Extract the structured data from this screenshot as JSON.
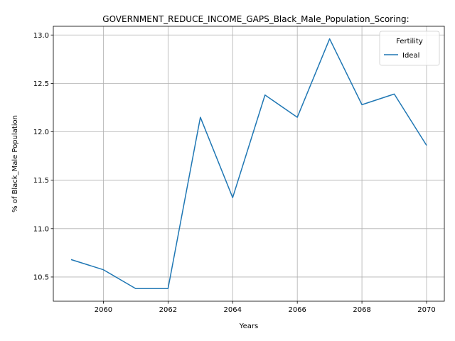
{
  "chart_data": {
    "type": "line",
    "title": "GOVERNMENT_REDUCE_INCOME_GAPS_Black_Male_Population_Scoring:",
    "xlabel": "Years",
    "ylabel": "% of Black_Male Population",
    "xlim": [
      2058.45,
      2070.55
    ],
    "ylim": [
      10.25,
      13.09
    ],
    "x_ticks": [
      2060,
      2062,
      2064,
      2066,
      2068,
      2070
    ],
    "y_ticks": [
      10.5,
      11.0,
      11.5,
      12.0,
      12.5,
      13.0
    ],
    "x_tick_labels": [
      "2060",
      "2062",
      "2064",
      "2066",
      "2068",
      "2070"
    ],
    "y_tick_labels": [
      "10.5",
      "11.0",
      "11.5",
      "12.0",
      "12.5",
      "13.0"
    ],
    "grid": true,
    "legend": {
      "title": "Fertility",
      "placement": "top-right"
    },
    "series": [
      {
        "name": "Ideal",
        "color": "#1f77b4",
        "x": [
          2059,
          2060,
          2061,
          2062,
          2063,
          2064,
          2065,
          2066,
          2067,
          2068,
          2069,
          2070
        ],
        "values": [
          10.68,
          10.575,
          10.38,
          10.38,
          12.15,
          11.32,
          12.38,
          12.15,
          12.96,
          12.28,
          12.39,
          11.86
        ]
      }
    ]
  }
}
